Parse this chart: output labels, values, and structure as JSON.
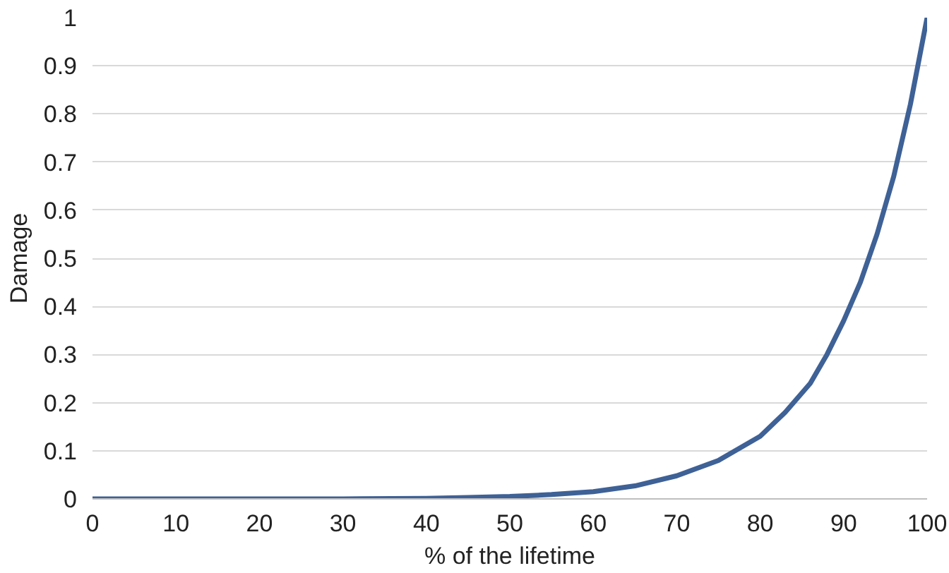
{
  "chart_data": {
    "type": "line",
    "xlabel": "% of the lifetime",
    "ylabel": "Damage",
    "x": [
      0,
      10,
      20,
      30,
      40,
      45,
      50,
      55,
      60,
      65,
      70,
      75,
      80,
      83,
      86,
      88,
      90,
      92,
      94,
      96,
      98,
      100
    ],
    "series": [
      {
        "color": "#3e6196",
        "values": [
          0,
          0,
          0,
          0,
          0.001,
          0.003,
          0.005,
          0.009,
          0.015,
          0.027,
          0.048,
          0.08,
          0.13,
          0.18,
          0.24,
          0.3,
          0.37,
          0.45,
          0.55,
          0.67,
          0.82,
          1
        ]
      }
    ],
    "xlim": [
      0,
      100
    ],
    "ylim": [
      0,
      1
    ],
    "xticks": [
      0,
      10,
      20,
      30,
      40,
      50,
      60,
      70,
      80,
      90,
      100
    ],
    "yticks": [
      0,
      0.1,
      0.2,
      0.3,
      0.4,
      0.5,
      0.6,
      0.7,
      0.8,
      0.9,
      1
    ],
    "grid": "y",
    "marker": "none",
    "line_style": "solid"
  }
}
